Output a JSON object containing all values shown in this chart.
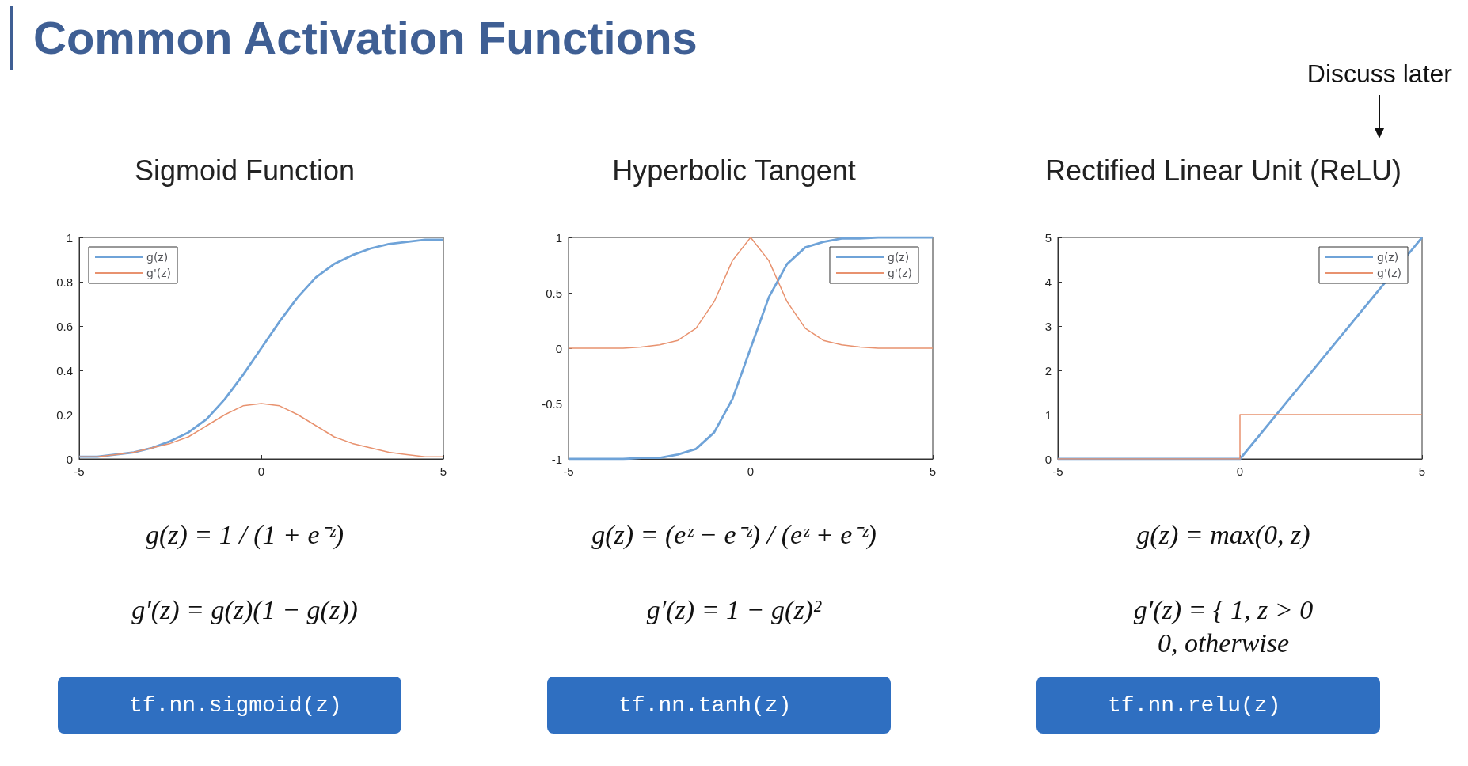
{
  "chart_data": [
    {
      "type": "line",
      "title": "Sigmoid Function",
      "x": [
        -5,
        -4.5,
        -4,
        -3.5,
        -3,
        -2.5,
        -2,
        -1.5,
        -1,
        -0.5,
        0,
        0.5,
        1,
        1.5,
        2,
        2.5,
        3,
        3.5,
        4,
        4.5,
        5
      ],
      "series": [
        {
          "name": "g(z)",
          "color": "#6fa3d8",
          "values": [
            0.01,
            0.01,
            0.02,
            0.03,
            0.05,
            0.08,
            0.12,
            0.18,
            0.27,
            0.38,
            0.5,
            0.62,
            0.73,
            0.82,
            0.88,
            0.92,
            0.95,
            0.97,
            0.98,
            0.99,
            0.99
          ]
        },
        {
          "name": "g'(z)",
          "color": "#e8926f",
          "values": [
            0.01,
            0.01,
            0.02,
            0.03,
            0.05,
            0.07,
            0.1,
            0.15,
            0.2,
            0.24,
            0.25,
            0.24,
            0.2,
            0.15,
            0.1,
            0.07,
            0.05,
            0.03,
            0.02,
            0.01,
            0.01
          ]
        }
      ],
      "xlim": [
        -5,
        5
      ],
      "xticks": [
        -5,
        0,
        5
      ],
      "ylim": [
        0,
        1
      ],
      "yticks": [
        0,
        0.2,
        0.4,
        0.6,
        0.8,
        1
      ],
      "grid": false,
      "legend": "top left",
      "marker": "none",
      "line_style": "solid",
      "annotations": [
        "Common Activation Functions",
        "g(z) = 1 / (1 + e⁻ᶻ)",
        "g′(z) = g(z)(1 − g(z))",
        "tf.nn.sigmoid(z)"
      ]
    },
    {
      "type": "line",
      "title": "Hyperbolic Tangent",
      "x": [
        -5,
        -4.5,
        -4,
        -3.5,
        -3,
        -2.5,
        -2,
        -1.5,
        -1,
        -0.5,
        0,
        0.5,
        1,
        1.5,
        2,
        2.5,
        3,
        3.5,
        4,
        4.5,
        5
      ],
      "series": [
        {
          "name": "g(z)",
          "color": "#6fa3d8",
          "values": [
            -1,
            -1,
            -1,
            -1,
            -0.99,
            -0.99,
            -0.96,
            -0.91,
            -0.76,
            -0.46,
            0,
            0.46,
            0.76,
            0.91,
            0.96,
            0.99,
            0.99,
            1,
            1,
            1,
            1
          ]
        },
        {
          "name": "g'(z)",
          "color": "#e8926f",
          "values": [
            0,
            0,
            0,
            0,
            0.01,
            0.03,
            0.07,
            0.18,
            0.42,
            0.79,
            1,
            0.79,
            0.42,
            0.18,
            0.07,
            0.03,
            0.01,
            0,
            0,
            0,
            0
          ]
        }
      ],
      "xlim": [
        -5,
        5
      ],
      "xticks": [
        -5,
        0,
        5
      ],
      "ylim": [
        -1,
        1
      ],
      "yticks": [
        -1,
        -0.5,
        0,
        0.5,
        1
      ],
      "grid": false,
      "legend": "top right",
      "marker": "none",
      "line_style": "solid",
      "annotations": [
        "g(z) = (eᶻ − e⁻ᶻ) / (eᶻ + e⁻ᶻ)",
        "g′(z) = 1 − g(z)²",
        "tf.nn.tanh(z)"
      ]
    },
    {
      "type": "line",
      "title": "Rectified Linear Unit (ReLU)",
      "series": [
        {
          "name": "g(z)",
          "color": "#6fa3d8",
          "x": [
            -5,
            0,
            5
          ],
          "values": [
            0,
            0,
            5
          ]
        },
        {
          "name": "g'(z)",
          "color": "#e8926f",
          "x": [
            -5,
            0,
            0,
            5
          ],
          "values": [
            0,
            0,
            1,
            1
          ]
        }
      ],
      "xlim": [
        -5,
        5
      ],
      "xticks": [
        -5,
        0,
        5
      ],
      "ylim": [
        0,
        5
      ],
      "yticks": [
        0,
        1,
        2,
        3,
        4,
        5
      ],
      "grid": false,
      "legend": "top right",
      "marker": "none",
      "line_style": "solid",
      "annotations": [
        "Discuss later",
        "g(z) = max(0, z)",
        "g′(z) = { 1,  z > 0\n0,  otherwise",
        "tf.nn.relu(z)"
      ]
    }
  ]
}
